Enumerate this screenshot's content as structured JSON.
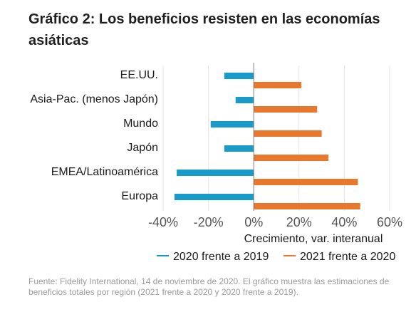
{
  "title": "Gráfico 2: Los beneficios resisten en las economías asiáticas",
  "source": "Fuente: Fidelity International, 14 de noviembre de 2020. El gráfico muestra las estimaciones de beneficios totales por región (2021 frente a 2020 y 2020 frente a 2019).",
  "colors": {
    "series_2020": "#1a9ac9",
    "series_2021": "#e8782e",
    "grid": "#e6e6e6",
    "axis": "#7f7f7f"
  },
  "chart_data": {
    "type": "bar",
    "orientation": "horizontal",
    "categories": [
      "EE.UU.",
      "Asia-Pac. (menos Japón)",
      "Mundo",
      "Japón",
      "EMEA/Latinoamérica",
      "Europa"
    ],
    "series": [
      {
        "name": "2020 frente a 2019",
        "values": [
          -13,
          -8,
          -19,
          -13,
          -34,
          -35
        ]
      },
      {
        "name": "2021 frente a 2020",
        "values": [
          21,
          28,
          30,
          33,
          46,
          47
        ]
      }
    ],
    "xlabel": "Crecimiento, var. interanual",
    "xlim": [
      -40,
      60
    ],
    "xticks": [
      -40,
      -20,
      0,
      20,
      40,
      60
    ],
    "xtick_labels": [
      "-40%",
      "-20%",
      "0%",
      "20%",
      "40%",
      "60%"
    ],
    "grid": true,
    "legend_position": "bottom"
  }
}
